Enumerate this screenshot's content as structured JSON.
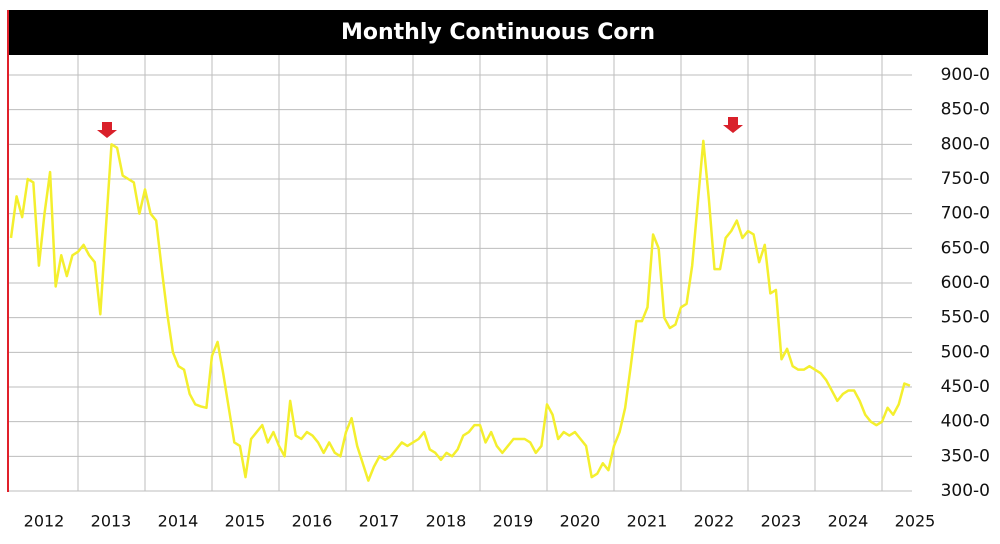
{
  "chart_data": {
    "type": "line",
    "title": "Monthly Continuous Corn",
    "categories": [
      "2012",
      null,
      null,
      null,
      null,
      null,
      null,
      null,
      null,
      null,
      null,
      null,
      "2013",
      null,
      null,
      null,
      null,
      null,
      null,
      null,
      null,
      null,
      null,
      null,
      "2014",
      null,
      null,
      null,
      null,
      null,
      null,
      null,
      null,
      null,
      null,
      null,
      "2015",
      null,
      null,
      null,
      null,
      null,
      null,
      null,
      null,
      null,
      null,
      null,
      "2016",
      null,
      null,
      null,
      null,
      null,
      null,
      null,
      null,
      null,
      null,
      null,
      "2017",
      null,
      null,
      null,
      null,
      null,
      null,
      null,
      null,
      null,
      null,
      null,
      "2018",
      null,
      null,
      null,
      null,
      null,
      null,
      null,
      null,
      null,
      null,
      null,
      "2019",
      null,
      null,
      null,
      null,
      null,
      null,
      null,
      null,
      null,
      null,
      null,
      "2020",
      null,
      null,
      null,
      null,
      null,
      null,
      null,
      null,
      null,
      null,
      null,
      "2021",
      null,
      null,
      null,
      null,
      null,
      null,
      null,
      null,
      null,
      null,
      null,
      "2022",
      null,
      null,
      null,
      null,
      null,
      null,
      null,
      null,
      null,
      null,
      null,
      "2023",
      null,
      null,
      null,
      null,
      null,
      null,
      null,
      null,
      null,
      null,
      null,
      "2024",
      null,
      null,
      null,
      null,
      null,
      null,
      null,
      null,
      null,
      null,
      null,
      "2025",
      null,
      null,
      null,
      null,
      null
    ],
    "series": [
      {
        "name": "Monthly Continuous Corn",
        "color": "#f4ef2e",
        "values": [
          665,
          725,
          695,
          750,
          745,
          625,
          700,
          760,
          595,
          640,
          610,
          640,
          645,
          655,
          640,
          630,
          555,
          680,
          800,
          795,
          755,
          750,
          745,
          700,
          735,
          700,
          690,
          620,
          555,
          500,
          480,
          475,
          440,
          425,
          422,
          420,
          495,
          515,
          470,
          420,
          370,
          365,
          320,
          375,
          385,
          395,
          370,
          385,
          365,
          350,
          430,
          380,
          375,
          385,
          380,
          370,
          355,
          370,
          355,
          350,
          385,
          405,
          365,
          340,
          315,
          335,
          350,
          345,
          350,
          360,
          370,
          365,
          370,
          375,
          385,
          360,
          355,
          345,
          355,
          350,
          360,
          380,
          385,
          395,
          395,
          370,
          385,
          365,
          355,
          365,
          375,
          375,
          375,
          370,
          355,
          365,
          425,
          410,
          375,
          385,
          380,
          385,
          375,
          365,
          320,
          325,
          340,
          330,
          365,
          385,
          420,
          480,
          545,
          545,
          565,
          670,
          650,
          550,
          535,
          540,
          565,
          570,
          625,
          715,
          805,
          720,
          620,
          620,
          665,
          675,
          690,
          665,
          675,
          670,
          630,
          655,
          585,
          590,
          490,
          505,
          480,
          475,
          475,
          480,
          475,
          470,
          460,
          445,
          430,
          440,
          445,
          445,
          430,
          410,
          400,
          395,
          400,
          420,
          410,
          425,
          455,
          452
        ]
      }
    ],
    "ylim": [
      300,
      900
    ],
    "yticks": [
      {
        "value": 300,
        "label": "300-0"
      },
      {
        "value": 350,
        "label": "350-0"
      },
      {
        "value": 400,
        "label": "400-0"
      },
      {
        "value": 450,
        "label": "450-0"
      },
      {
        "value": 500,
        "label": "500-0"
      },
      {
        "value": 550,
        "label": "550-0"
      },
      {
        "value": 600,
        "label": "600-0"
      },
      {
        "value": 650,
        "label": "650-0"
      },
      {
        "value": 700,
        "label": "700-0"
      },
      {
        "value": 750,
        "label": "750-0"
      },
      {
        "value": 800,
        "label": "800-0"
      },
      {
        "value": 850,
        "label": "850-0"
      },
      {
        "value": 900,
        "label": "900-0"
      }
    ],
    "grid": true
  }
}
